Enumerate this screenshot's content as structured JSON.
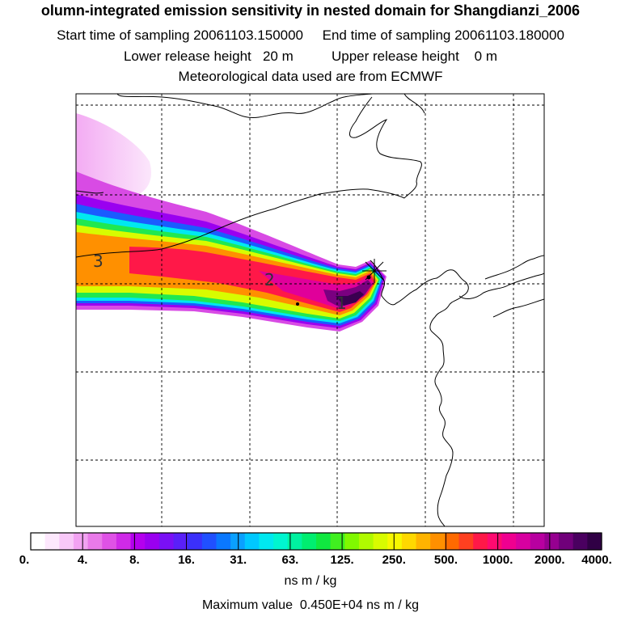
{
  "header": {
    "title": "olumn-integrated emission sensitivity in nested domain for Shangdianzi_2006",
    "sampling_line": "Start time of sampling 20061103.150000     End time of sampling 20061103.180000",
    "release_line": "Lower release height   20 m          Upper release height    0 m",
    "met_line": "Meteorological data used are from ECMWF"
  },
  "map": {
    "plume_markers": [
      "3",
      "2",
      "1"
    ]
  },
  "colorbar": {
    "tick_labels": [
      "0.",
      "4.",
      "8.",
      "16.",
      "31.",
      "63.",
      "125.",
      "250.",
      "500.",
      "1000.",
      "2000.",
      "4000."
    ],
    "colors": [
      "#ffffff",
      "#fde8fd",
      "#f8c8f8",
      "#f2a2f2",
      "#e97ae9",
      "#df52e6",
      "#cf2ae8",
      "#b400ee",
      "#9a00f0",
      "#7a10f5",
      "#5a20f8",
      "#3b30fb",
      "#2050ff",
      "#0a78ff",
      "#0aa0ff",
      "#00c8ff",
      "#00e8f0",
      "#00f5d0",
      "#00f2a0",
      "#00ee70",
      "#10e840",
      "#40f020",
      "#80f800",
      "#b0fa00",
      "#d8fc00",
      "#f8f800",
      "#ffd800",
      "#ffb400",
      "#ff9000",
      "#ff6a00",
      "#ff4020",
      "#ff1848",
      "#ff0a70",
      "#f00090",
      "#d800a0",
      "#b800a0",
      "#960090",
      "#70007a",
      "#4a0060",
      "#300045"
    ],
    "units": "ns m / kg",
    "max_value": "Maximum value  0.450E+04 ns m / kg"
  }
}
